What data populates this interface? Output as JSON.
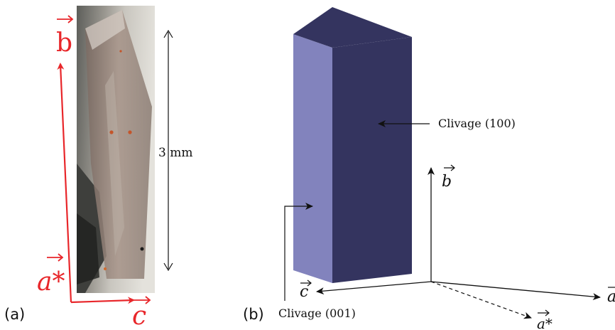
{
  "panel_a": {
    "label": "(a)",
    "scale_bar": "3 mm",
    "axes": {
      "b": "b",
      "a_star": "a*",
      "c": "c"
    },
    "axis_color": "#e8262a"
  },
  "panel_b": {
    "label": "(b)",
    "cleavage_100": "Clivage (100)",
    "cleavage_001": "Clivage (001)",
    "axes": {
      "b": "b",
      "c": "c",
      "a": "a",
      "a_star": "a*"
    },
    "colors": {
      "light_face": "#8283bd",
      "dark_face": "#34345f"
    }
  }
}
